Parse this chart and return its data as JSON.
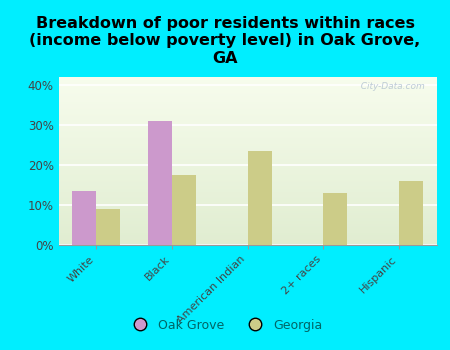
{
  "title": "Breakdown of poor residents within races\n(income below poverty level) in Oak Grove,\nGA",
  "categories": [
    "White",
    "Black",
    "American Indian",
    "2+ races",
    "Hispanic"
  ],
  "oak_grove_values": [
    0.135,
    0.31,
    0.0,
    0.0,
    0.0
  ],
  "georgia_values": [
    0.09,
    0.175,
    0.235,
    0.13,
    0.16
  ],
  "oak_grove_color": "#cc99cc",
  "georgia_color": "#cccc88",
  "background_outer": "#00eeff",
  "ylim": [
    0,
    0.42
  ],
  "yticks": [
    0.0,
    0.1,
    0.2,
    0.3,
    0.4
  ],
  "ytick_labels": [
    "0%",
    "10%",
    "20%",
    "30%",
    "40%"
  ],
  "bar_width": 0.32,
  "title_fontsize": 11.5,
  "legend_labels": [
    "Oak Grove",
    "Georgia"
  ],
  "watermark": "  City-Data.com"
}
